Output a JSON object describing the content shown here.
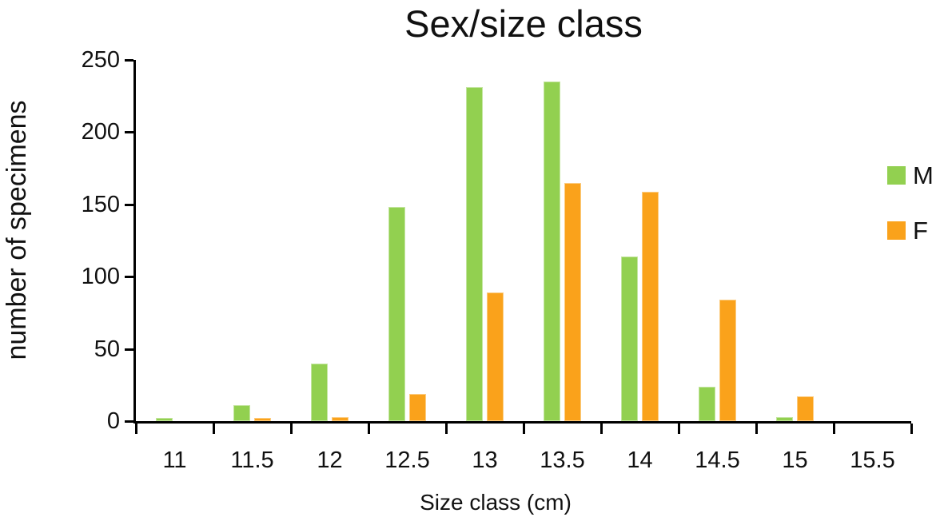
{
  "title": "Sex/size class",
  "chart_data": {
    "type": "bar",
    "title": "Sex/size class",
    "xlabel": "Size class (cm)",
    "ylabel": "number of specimens",
    "categories": [
      "11",
      "11.5",
      "12",
      "12.5",
      "13",
      "13.5",
      "14",
      "14.5",
      "15",
      "15.5"
    ],
    "series": [
      {
        "name": "M",
        "color": "#92D050",
        "values": [
          2,
          11,
          40,
          148,
          231,
          235,
          114,
          24,
          3,
          0
        ]
      },
      {
        "name": "F",
        "color": "#FAA21B",
        "values": [
          0,
          2,
          3,
          19,
          89,
          165,
          159,
          84,
          17,
          0
        ]
      }
    ],
    "ylim": [
      0,
      250
    ],
    "yticks": [
      0,
      50,
      100,
      150,
      200,
      250
    ],
    "grid": false,
    "legend_position": "right"
  },
  "legend": {
    "items": [
      {
        "label": "M",
        "color": "#92D050"
      },
      {
        "label": "F",
        "color": "#FAA21B"
      }
    ]
  }
}
